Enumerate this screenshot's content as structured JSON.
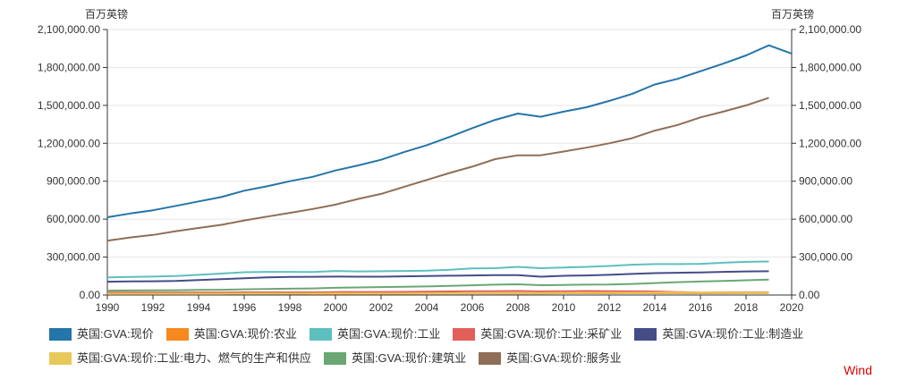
{
  "chart_data": {
    "type": "line",
    "title": "",
    "y_unit_left": "百万英镑",
    "y_unit_right": "百万英镑",
    "x_ticks": [
      1990,
      1992,
      1994,
      1996,
      1998,
      2000,
      2002,
      2004,
      2006,
      2008,
      2010,
      2012,
      2014,
      2016,
      2018,
      2020
    ],
    "y_ticks": [
      "0.00",
      "300,000.00",
      "600,000.00",
      "900,000.00",
      "1,200,000.00",
      "1,500,000.00",
      "1,800,000.00",
      "2,100,000.00"
    ],
    "xlim": [
      1990,
      2020
    ],
    "ylim": [
      0,
      2100000
    ],
    "grid": "horizontal",
    "legend_position": "bottom",
    "x": [
      1990,
      1991,
      1992,
      1993,
      1994,
      1995,
      1996,
      1997,
      1998,
      1999,
      2000,
      2001,
      2002,
      2003,
      2004,
      2005,
      2006,
      2007,
      2008,
      2009,
      2010,
      2011,
      2012,
      2013,
      2014,
      2015,
      2016,
      2017,
      2018,
      2019,
      2020
    ],
    "series": [
      {
        "name": "英国:GVA:现价",
        "color": "#2475a8",
        "values": [
          615000,
          645000,
          670000,
          705000,
          740000,
          775000,
          825000,
          860000,
          900000,
          935000,
          985000,
          1025000,
          1070000,
          1130000,
          1185000,
          1250000,
          1320000,
          1385000,
          1435000,
          1410000,
          1450000,
          1485000,
          1535000,
          1590000,
          1665000,
          1710000,
          1770000,
          1830000,
          1895000,
          1975000,
          1910000
        ]
      },
      {
        "name": "英国:GVA:现价:农业",
        "color": "#f5891e",
        "values": [
          12000,
          12000,
          12000,
          12000,
          12000,
          12000,
          13000,
          12000,
          11000,
          10000,
          10000,
          10000,
          10000,
          11000,
          12000,
          12000,
          12000,
          12000,
          13000,
          13000,
          14000,
          14000,
          14000,
          15000,
          15000,
          15000,
          15000,
          15000,
          16000,
          16000,
          null
        ]
      },
      {
        "name": "英国:GVA:现价:工业",
        "color": "#5ebfbf",
        "values": [
          140000,
          143000,
          146000,
          150000,
          160000,
          170000,
          180000,
          183000,
          183000,
          182000,
          190000,
          187000,
          188000,
          190000,
          192000,
          200000,
          210000,
          212000,
          223000,
          212000,
          218000,
          223000,
          230000,
          240000,
          245000,
          245000,
          247000,
          255000,
          262000,
          265000,
          null
        ]
      },
      {
        "name": "英国:GVA:现价:工业:采矿业",
        "color": "#e35f5b",
        "values": [
          20000,
          20000,
          20000,
          20000,
          20000,
          20000,
          21000,
          21000,
          21000,
          21000,
          23000,
          24000,
          24000,
          25000,
          26000,
          28000,
          30000,
          30000,
          32000,
          28000,
          30000,
          32000,
          30000,
          29000,
          28000,
          23000,
          20000,
          21000,
          22000,
          22000,
          null
        ]
      },
      {
        "name": "英国:GVA:现价:工业:制造业",
        "color": "#454d87",
        "values": [
          105000,
          108000,
          109000,
          111000,
          118000,
          125000,
          133000,
          140000,
          143000,
          144000,
          146000,
          145000,
          145000,
          148000,
          150000,
          153000,
          155000,
          157000,
          157000,
          145000,
          152000,
          155000,
          160000,
          167000,
          173000,
          176000,
          178000,
          183000,
          187000,
          188000,
          null
        ]
      },
      {
        "name": "英国:GVA:现价:工业:电力、燃气的生产和供应",
        "color": "#e8c85a",
        "values": [
          10000,
          10000,
          10000,
          10000,
          10000,
          10000,
          11000,
          11000,
          11000,
          11000,
          12000,
          12000,
          12000,
          12000,
          13000,
          14000,
          15000,
          15000,
          16000,
          16000,
          17000,
          17000,
          18000,
          18000,
          19000,
          19000,
          19000,
          20000,
          20000,
          20000,
          null
        ]
      },
      {
        "name": "英国:GVA:现价:建筑业",
        "color": "#6aa774",
        "values": [
          35000,
          36000,
          37000,
          38000,
          40000,
          42000,
          45000,
          48000,
          50000,
          52000,
          57000,
          60000,
          63000,
          66000,
          68000,
          72000,
          77000,
          82000,
          85000,
          78000,
          80000,
          82000,
          83000,
          88000,
          95000,
          102000,
          107000,
          112000,
          117000,
          122000,
          null
        ]
      },
      {
        "name": "英国:GVA:现价:服务业",
        "color": "#8f6e55",
        "values": [
          430000,
          455000,
          475000,
          505000,
          530000,
          555000,
          590000,
          620000,
          650000,
          680000,
          715000,
          760000,
          800000,
          855000,
          910000,
          965000,
          1015000,
          1075000,
          1105000,
          1105000,
          1135000,
          1165000,
          1200000,
          1240000,
          1300000,
          1345000,
          1405000,
          1450000,
          1500000,
          1560000,
          null
        ]
      }
    ],
    "source": "Wind"
  }
}
